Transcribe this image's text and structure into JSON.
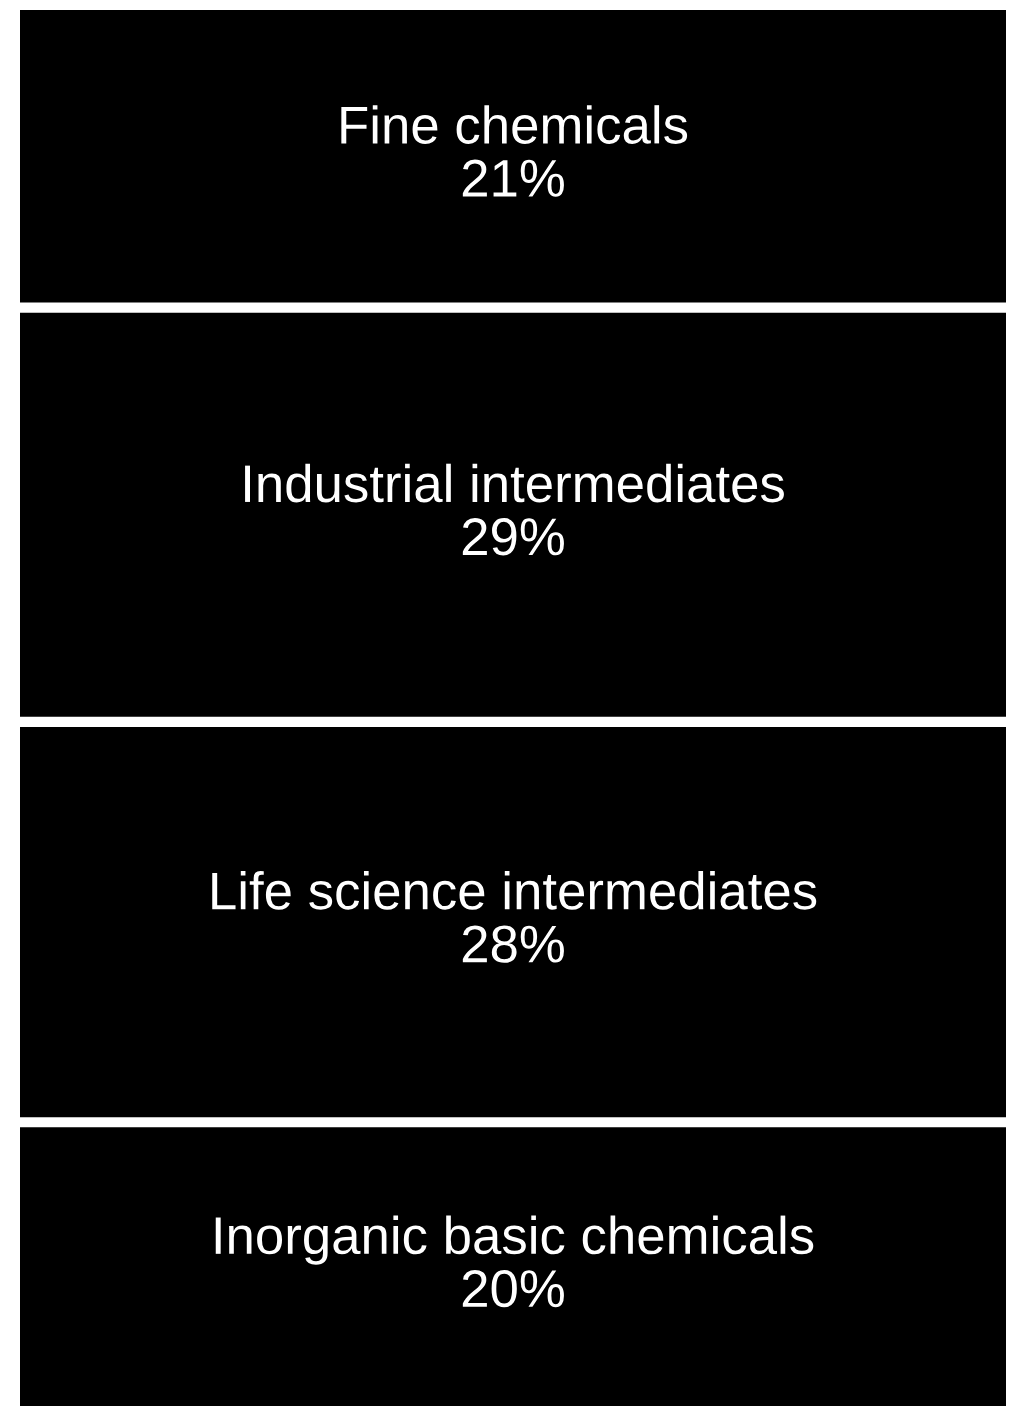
{
  "chart_data": {
    "type": "other",
    "categories": [
      "Fine chemicals",
      "Industrial intermediates",
      "Life science intermediates",
      "Inorganic basic chemicals"
    ],
    "values": [
      21,
      29,
      28,
      20
    ],
    "value_labels": [
      "21%",
      "29%",
      "28%",
      "20%"
    ],
    "colors": [
      "#000000",
      "#000000",
      "#000000",
      "#000000"
    ]
  }
}
